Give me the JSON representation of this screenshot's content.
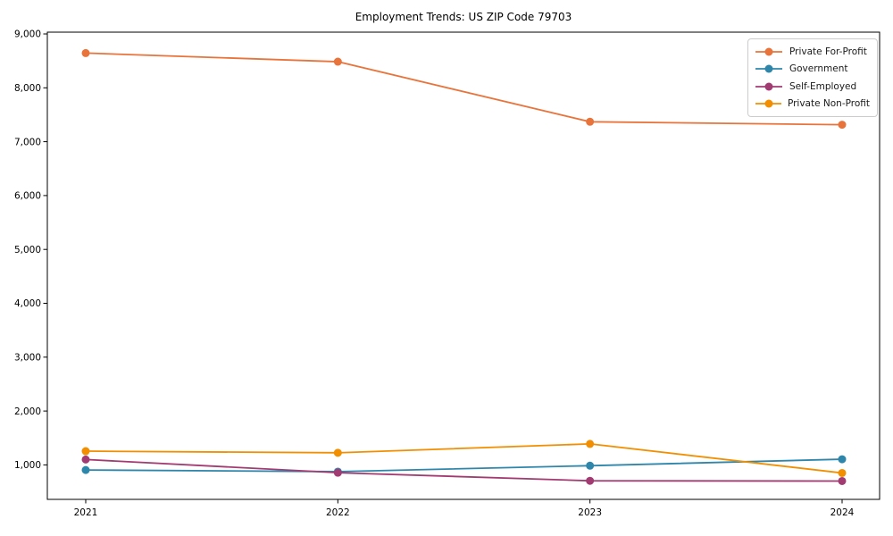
{
  "chart_data": {
    "type": "line",
    "title": "Employment Trends: US ZIP Code 79703",
    "xlabel": "",
    "ylabel": "",
    "categories": [
      "2021",
      "2022",
      "2023",
      "2024"
    ],
    "series": [
      {
        "name": "Private For-Profit",
        "color": "#E8743B",
        "values": [
          8645,
          8485,
          7370,
          7315
        ]
      },
      {
        "name": "Government",
        "color": "#2E86AB",
        "values": [
          905,
          875,
          985,
          1105
        ]
      },
      {
        "name": "Self-Employed",
        "color": "#A23B72",
        "values": [
          1100,
          855,
          705,
          700
        ]
      },
      {
        "name": "Private Non-Profit",
        "color": "#F18F01",
        "values": [
          1255,
          1225,
          1390,
          850
        ]
      }
    ],
    "ytick_values": [
      1000,
      2000,
      3000,
      4000,
      5000,
      6000,
      7000,
      8000,
      9000
    ],
    "ytick_labels": [
      "1,000",
      "2,000",
      "3,000",
      "4,000",
      "5,000",
      "6,000",
      "7,000",
      "8,000",
      "9,000"
    ],
    "ylim": [
      360,
      9030
    ],
    "grid": false,
    "legend_position": "upper right",
    "marker": "circle",
    "axis_color": "#000000",
    "background_color": "#ffffff"
  }
}
